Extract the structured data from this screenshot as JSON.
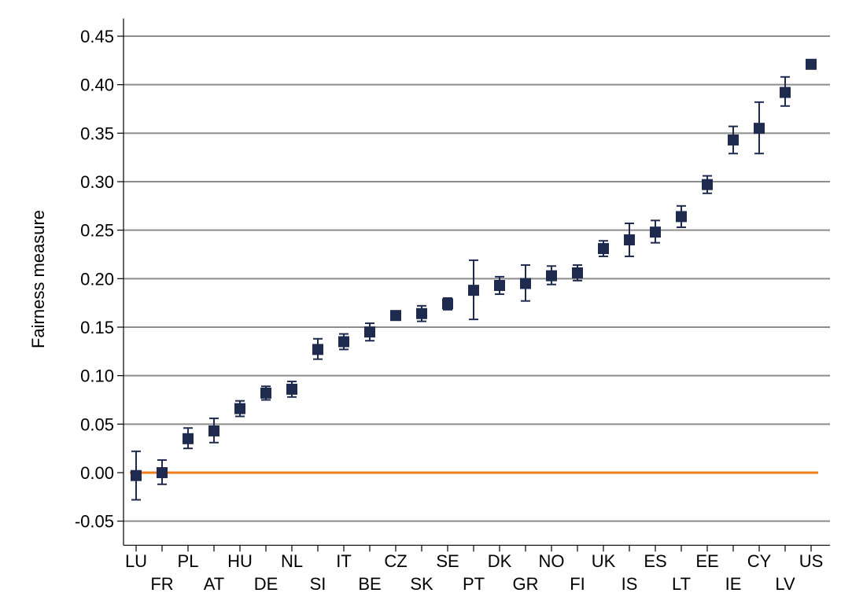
{
  "chart_data": {
    "type": "scatter",
    "title": "",
    "xlabel": "",
    "ylabel": "Fairness measure",
    "ylim": [
      -0.07,
      0.465
    ],
    "yticks": [
      "0.45",
      "0.40",
      "0.35",
      "0.30",
      "0.25",
      "0.20",
      "0.15",
      "0.10",
      "0.05",
      "0.00",
      "-0.05"
    ],
    "grid": true,
    "legend": "none",
    "reference_line": 0,
    "categories": [
      "LU",
      "FR",
      "PL",
      "AT",
      "HU",
      "DE",
      "NL",
      "SI",
      "IT",
      "BE",
      "CZ",
      "SK",
      "SE",
      "PT",
      "DK",
      "GR",
      "NO",
      "FI",
      "UK",
      "IS",
      "ES",
      "LT",
      "EE",
      "IE",
      "CY",
      "LV",
      "US"
    ],
    "series": [
      {
        "values": [
          -0.003,
          0.0,
          0.035,
          0.043,
          0.066,
          0.082,
          0.086,
          0.127,
          0.135,
          0.145,
          0.162,
          0.164,
          0.174,
          0.188,
          0.193,
          0.195,
          0.203,
          0.206,
          0.231,
          0.24,
          0.248,
          0.264,
          0.297,
          0.343,
          0.355,
          0.392,
          0.421
        ],
        "lower": [
          -0.028,
          -0.012,
          0.025,
          0.031,
          0.058,
          0.075,
          0.078,
          0.117,
          0.127,
          0.136,
          0.16,
          0.156,
          0.168,
          0.158,
          0.184,
          0.177,
          0.194,
          0.198,
          0.223,
          0.223,
          0.237,
          0.253,
          0.288,
          0.329,
          0.329,
          0.378,
          0.418
        ],
        "upper": [
          0.022,
          0.013,
          0.046,
          0.056,
          0.074,
          0.089,
          0.094,
          0.138,
          0.143,
          0.154,
          0.164,
          0.172,
          0.18,
          0.219,
          0.202,
          0.214,
          0.213,
          0.214,
          0.239,
          0.257,
          0.26,
          0.275,
          0.306,
          0.357,
          0.382,
          0.408,
          0.424
        ]
      }
    ]
  },
  "colors": {
    "marker": "#1f2a4f",
    "grid": "#8c8c8c",
    "zero_line": "#f07d1a",
    "axis": "#000000"
  }
}
